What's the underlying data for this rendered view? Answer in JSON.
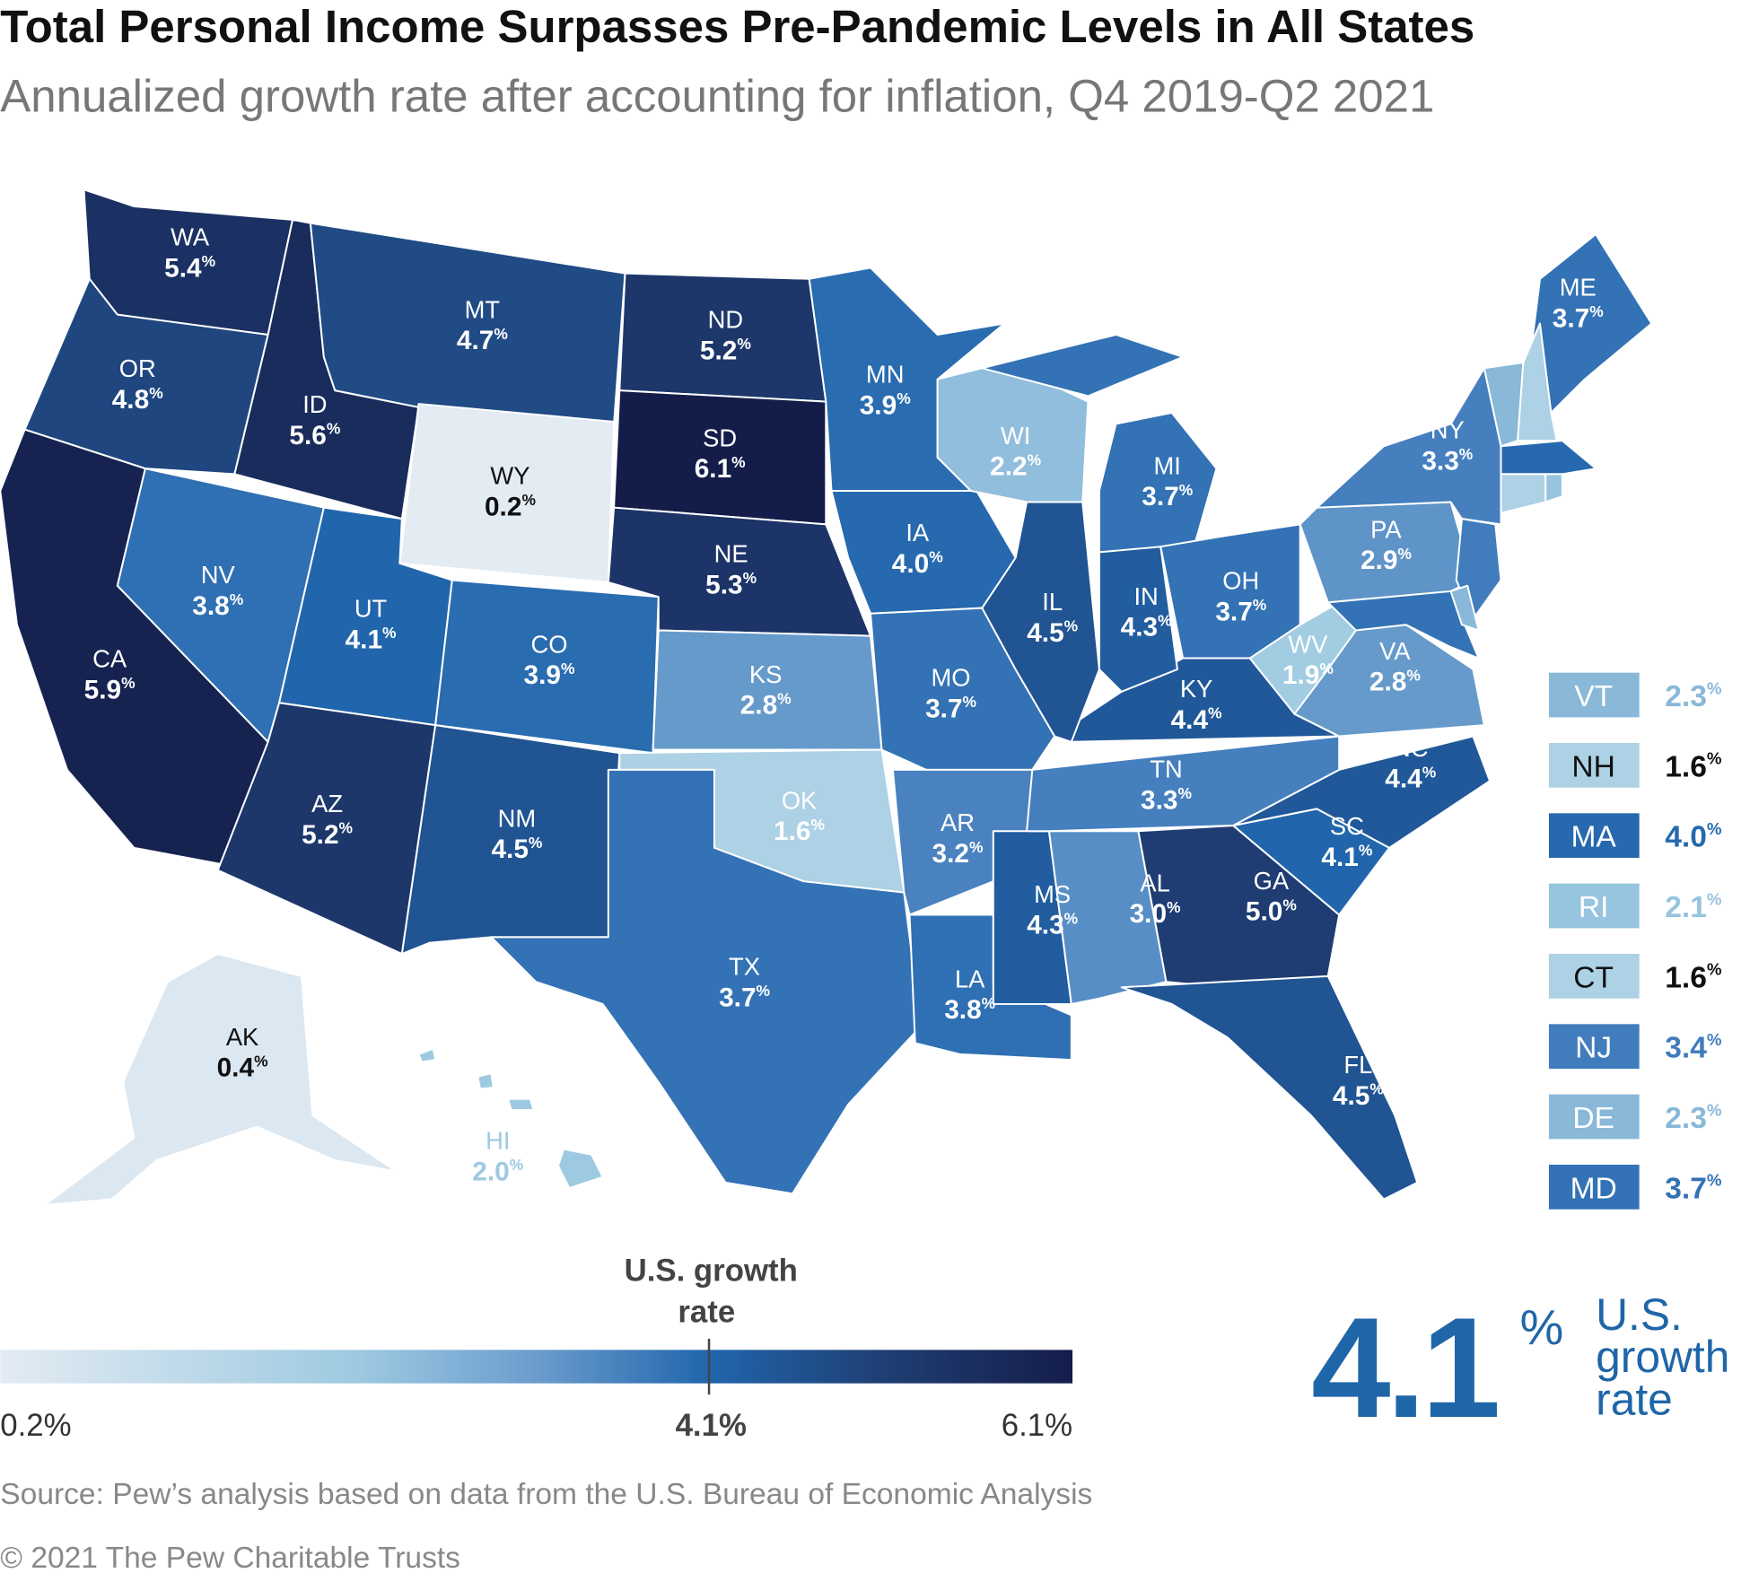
{
  "title": "Total Personal Income Surpasses Pre-Pandemic Levels in All States",
  "subtitle": "Annualized growth rate after accounting for inflation, Q4 2019-Q2 2021",
  "chart_data": {
    "type": "choropleth",
    "title": "Total Personal Income Surpasses Pre-Pandemic Levels in All States",
    "subtitle": "Annualized growth rate after accounting for inflation, Q4 2019-Q2 2021",
    "unit": "%",
    "states": [
      {
        "abbr": "WA",
        "value": 5.4
      },
      {
        "abbr": "OR",
        "value": 4.8
      },
      {
        "abbr": "CA",
        "value": 5.9
      },
      {
        "abbr": "ID",
        "value": 5.6
      },
      {
        "abbr": "NV",
        "value": 3.8
      },
      {
        "abbr": "MT",
        "value": 4.7
      },
      {
        "abbr": "WY",
        "value": 0.2
      },
      {
        "abbr": "UT",
        "value": 4.1
      },
      {
        "abbr": "AZ",
        "value": 5.2
      },
      {
        "abbr": "CO",
        "value": 3.9
      },
      {
        "abbr": "NM",
        "value": 4.5
      },
      {
        "abbr": "ND",
        "value": 5.2
      },
      {
        "abbr": "SD",
        "value": 6.1
      },
      {
        "abbr": "NE",
        "value": 5.3
      },
      {
        "abbr": "KS",
        "value": 2.8
      },
      {
        "abbr": "OK",
        "value": 1.6
      },
      {
        "abbr": "TX",
        "value": 3.7
      },
      {
        "abbr": "MN",
        "value": 3.9
      },
      {
        "abbr": "IA",
        "value": 4.0
      },
      {
        "abbr": "MO",
        "value": 3.7
      },
      {
        "abbr": "AR",
        "value": 3.2
      },
      {
        "abbr": "LA",
        "value": 3.8
      },
      {
        "abbr": "WI",
        "value": 2.2
      },
      {
        "abbr": "IL",
        "value": 4.5
      },
      {
        "abbr": "MI",
        "value": 3.7
      },
      {
        "abbr": "IN",
        "value": 4.3
      },
      {
        "abbr": "OH",
        "value": 3.7
      },
      {
        "abbr": "KY",
        "value": 4.4
      },
      {
        "abbr": "TN",
        "value": 3.3
      },
      {
        "abbr": "MS",
        "value": 4.3
      },
      {
        "abbr": "AL",
        "value": 3.0
      },
      {
        "abbr": "GA",
        "value": 5.0
      },
      {
        "abbr": "FL",
        "value": 4.5
      },
      {
        "abbr": "SC",
        "value": 4.1
      },
      {
        "abbr": "NC",
        "value": 4.4
      },
      {
        "abbr": "VA",
        "value": 2.8
      },
      {
        "abbr": "WV",
        "value": 1.9
      },
      {
        "abbr": "PA",
        "value": 2.9
      },
      {
        "abbr": "NY",
        "value": 3.3
      },
      {
        "abbr": "ME",
        "value": 3.7
      },
      {
        "abbr": "AK",
        "value": 0.4
      },
      {
        "abbr": "HI",
        "value": 2.0
      }
    ],
    "small_states": [
      {
        "abbr": "VT",
        "value": 2.3
      },
      {
        "abbr": "NH",
        "value": 1.6
      },
      {
        "abbr": "MA",
        "value": 4.0
      },
      {
        "abbr": "RI",
        "value": 2.1
      },
      {
        "abbr": "CT",
        "value": 1.6
      },
      {
        "abbr": "NJ",
        "value": 3.4
      },
      {
        "abbr": "DE",
        "value": 2.3
      },
      {
        "abbr": "MD",
        "value": 3.7
      }
    ],
    "legend": {
      "min_label": "0.2%",
      "mid_label": "4.1%",
      "max_label": "6.1%",
      "min": 0.2,
      "mid": 4.1,
      "max": 6.1,
      "marker_label_line1": "U.S. growth",
      "marker_label_line2": "rate"
    }
  },
  "us_rate": {
    "value": "4.1",
    "pct": "%",
    "line1": "U.S.",
    "line2": "growth",
    "line3": "rate"
  },
  "source": "Source: Pew’s analysis based on data from the U.S. Bureau of Economic Analysis",
  "copyright": "© 2021 The Pew Charitable Trusts",
  "colors": {
    "accent": "#1f66a8",
    "low": "#e3ebf3",
    "high": "#141d4a",
    "text_gray": "#777777"
  }
}
